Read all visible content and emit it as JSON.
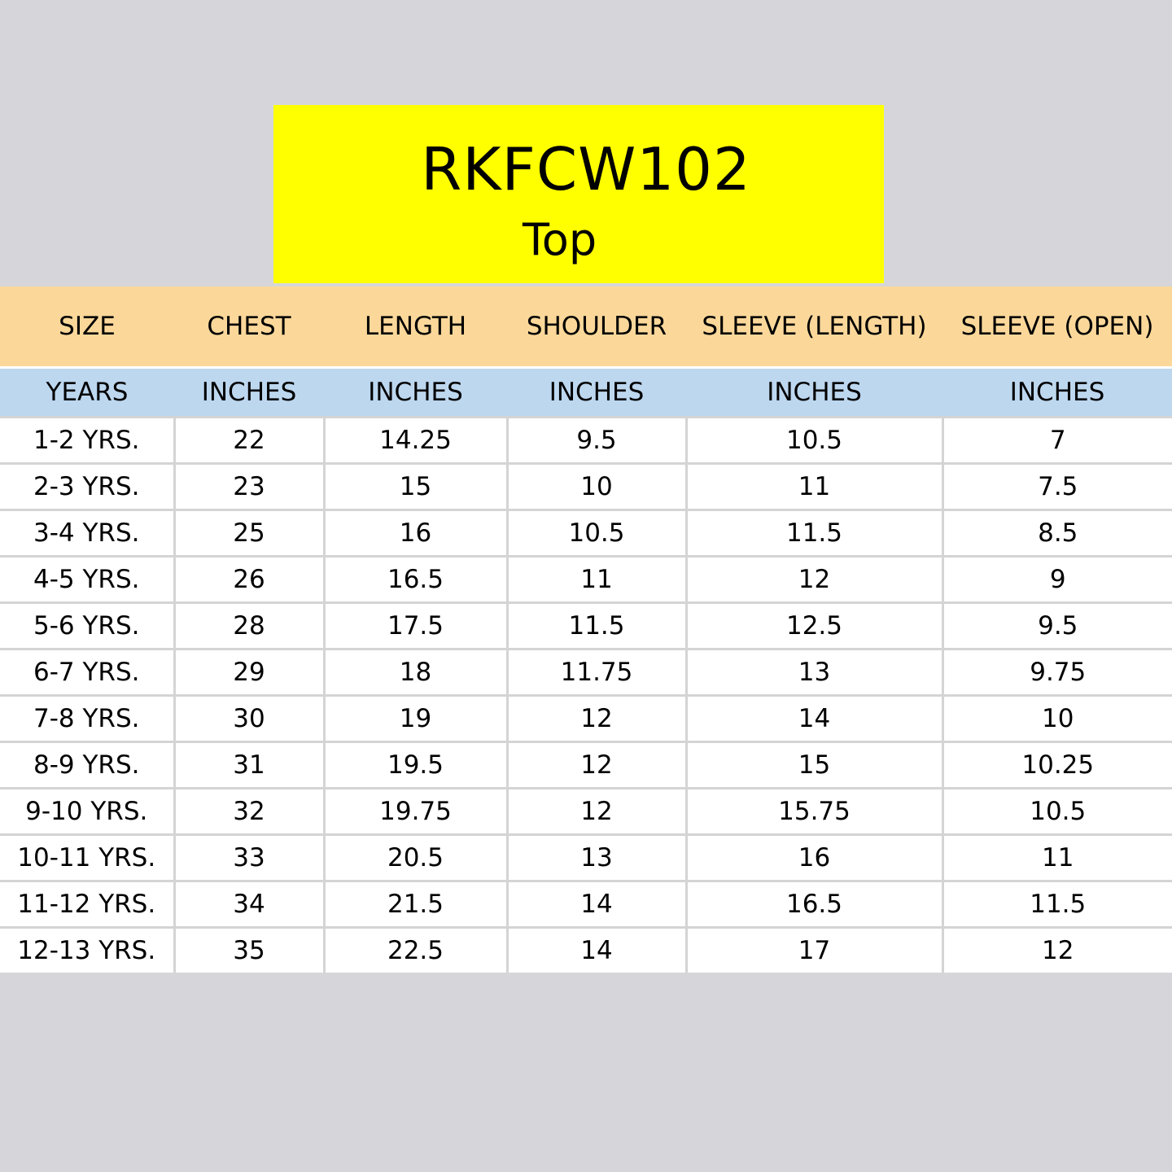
{
  "title": {
    "code": "RKFCW102",
    "subtitle": "Top"
  },
  "colors": {
    "page_background": "#d6d6da",
    "title_background": "#ffff00",
    "header_background": "#fbd89a",
    "units_background": "#bdd7ef",
    "cell_background": "#ffffff",
    "grid_line": "#d4d4d4"
  },
  "table": {
    "headers": [
      "SIZE",
      "CHEST",
      "LENGTH",
      "SHOULDER",
      "SLEEVE (LENGTH)",
      "SLEEVE (OPEN)"
    ],
    "units": [
      "YEARS",
      "INCHES",
      "INCHES",
      "INCHES",
      "INCHES",
      "INCHES"
    ],
    "rows": [
      [
        "1-2 YRS.",
        "22",
        "14.25",
        "9.5",
        "10.5",
        "7"
      ],
      [
        "2-3 YRS.",
        "23",
        "15",
        "10",
        "11",
        "7.5"
      ],
      [
        "3-4 YRS.",
        "25",
        "16",
        "10.5",
        "11.5",
        "8.5"
      ],
      [
        "4-5 YRS.",
        "26",
        "16.5",
        "11",
        "12",
        "9"
      ],
      [
        "5-6 YRS.",
        "28",
        "17.5",
        "11.5",
        "12.5",
        "9.5"
      ],
      [
        "6-7 YRS.",
        "29",
        "18",
        "11.75",
        "13",
        "9.75"
      ],
      [
        "7-8 YRS.",
        "30",
        "19",
        "12",
        "14",
        "10"
      ],
      [
        "8-9 YRS.",
        "31",
        "19.5",
        "12",
        "15",
        "10.25"
      ],
      [
        "9-10 YRS.",
        "32",
        "19.75",
        "12",
        "15.75",
        "10.5"
      ],
      [
        "10-11 YRS.",
        "33",
        "20.5",
        "13",
        "16",
        "11"
      ],
      [
        "11-12 YRS.",
        "34",
        "21.5",
        "14",
        "16.5",
        "11.5"
      ],
      [
        "12-13 YRS.",
        "35",
        "22.5",
        "14",
        "17",
        "12"
      ]
    ]
  }
}
